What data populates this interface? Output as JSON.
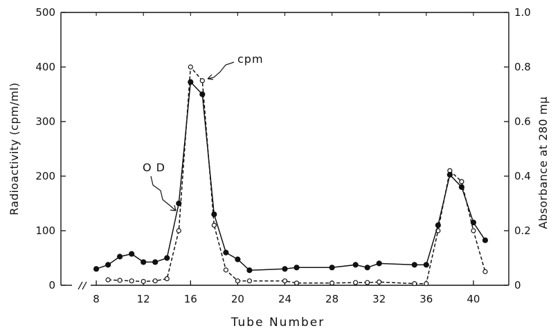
{
  "chart_data": {
    "type": "line",
    "title": "",
    "xlabel": "Tube Number",
    "ylabel": "Radioactivity (cpm/ml)",
    "y2label": "Absorbance at 280 mμ",
    "xlim": [
      5,
      43
    ],
    "ylim": [
      0,
      500
    ],
    "y2lim": [
      0,
      1.0
    ],
    "x_ticks": [
      8,
      12,
      16,
      20,
      24,
      28,
      32,
      36,
      40
    ],
    "y_ticks": [
      0,
      100,
      200,
      300,
      400,
      500
    ],
    "y2_ticks": [
      "0",
      "0.2",
      "0.4",
      "0.6",
      "0.8",
      "1.0"
    ],
    "axis_break_mark": "//",
    "grid": false,
    "series": [
      {
        "name": "cpm",
        "axis": "left",
        "line_style": "dashed",
        "marker": "open-circle",
        "x": [
          9,
          10,
          11,
          12,
          13,
          14,
          15,
          16,
          17,
          18,
          19,
          20,
          21,
          24,
          25,
          28,
          30,
          31,
          32,
          35,
          36,
          37,
          38,
          39,
          40,
          41
        ],
        "y": [
          10,
          9,
          8,
          7,
          8,
          12,
          100,
          400,
          375,
          110,
          28,
          8,
          8,
          8,
          4,
          4,
          5,
          5,
          6,
          3,
          3,
          100,
          210,
          190,
          100,
          25
        ]
      },
      {
        "name": "O D",
        "axis": "right",
        "line_style": "solid",
        "marker": "filled-circle",
        "x": [
          8,
          9,
          10,
          11,
          12,
          13,
          14,
          15,
          16,
          17,
          18,
          19,
          20,
          21,
          24,
          25,
          28,
          30,
          31,
          32,
          35,
          36,
          37,
          38,
          39,
          40,
          41
        ],
        "y": [
          0.06,
          0.075,
          0.105,
          0.115,
          0.085,
          0.085,
          0.1,
          0.3,
          0.745,
          0.7,
          0.26,
          0.12,
          0.095,
          0.055,
          0.06,
          0.065,
          0.065,
          0.075,
          0.065,
          0.08,
          0.075,
          0.075,
          0.22,
          0.405,
          0.36,
          0.23,
          0.165
        ]
      }
    ],
    "annotations": [
      {
        "text": "cpm",
        "points_to_series": "cpm"
      },
      {
        "text": "O D",
        "points_to_series": "O D"
      }
    ]
  }
}
